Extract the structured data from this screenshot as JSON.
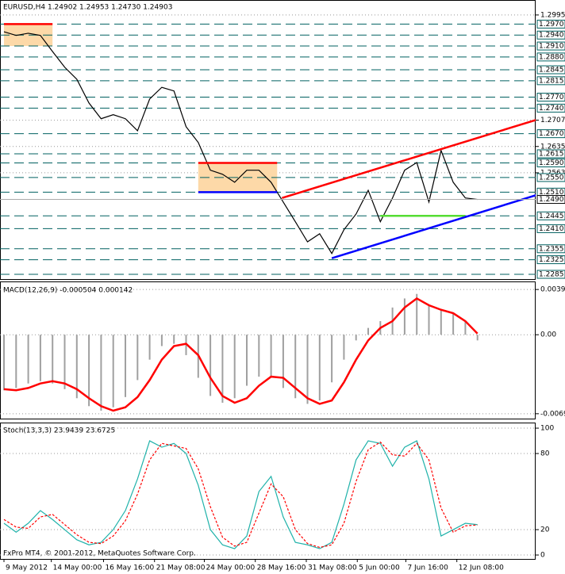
{
  "chart_data": [
    {
      "type": "line",
      "title": "EURUSD,H4  1.24902 1.24953 1.24730 1.24903",
      "xlim": [
        -0.327,
        43.79
      ],
      "ylim": [
        1.2272,
        1.3036
      ],
      "x": [
        0,
        1,
        2,
        3,
        4,
        5,
        6,
        7,
        8,
        9,
        10,
        11,
        12,
        13,
        14,
        15,
        16,
        17,
        18,
        19,
        20,
        21,
        22,
        23,
        24,
        25,
        26,
        27,
        28,
        29,
        30,
        31,
        32,
        33,
        34,
        35,
        36,
        37,
        38,
        39
      ],
      "series": [
        {
          "color": "#000000",
          "values": [
            1.2949,
            1.2939,
            1.2945,
            1.2939,
            1.2895,
            1.2852,
            1.2819,
            1.2754,
            1.2711,
            1.2722,
            1.2711,
            1.2678,
            1.2765,
            1.2797,
            1.2787,
            1.2689,
            1.2646,
            1.257,
            1.2559,
            1.2537,
            1.257,
            1.257,
            1.2537,
            1.2483,
            1.2429,
            1.2374,
            1.2396,
            1.2342,
            1.2407,
            1.245,
            1.2515,
            1.2429,
            1.2494,
            1.257,
            1.2591,
            1.2483,
            1.2624,
            1.2537,
            1.2494,
            1.249
          ]
        }
      ],
      "yticks": [
        {
          "value": 1.2995,
          "label": "1.2995"
        },
        {
          "value": 1.2707,
          "label": "1.2707"
        },
        {
          "value": 1.2635,
          "label": "1.2635"
        },
        {
          "value": 1.2563,
          "label": "1.2563"
        }
      ],
      "levels": [
        {
          "value": 1.297,
          "label": "1.2970"
        },
        {
          "value": 1.294,
          "label": "1.2940"
        },
        {
          "value": 1.291,
          "label": "1.2910"
        },
        {
          "value": 1.288,
          "label": "1.2880"
        },
        {
          "value": 1.2845,
          "label": "1.2845"
        },
        {
          "value": 1.2815,
          "label": "1.2815"
        },
        {
          "value": 1.277,
          "label": "1.2770"
        },
        {
          "value": 1.274,
          "label": "1.2740"
        },
        {
          "value": 1.267,
          "label": "1.2670"
        },
        {
          "value": 1.2615,
          "label": "1.2615"
        },
        {
          "value": 1.259,
          "label": "1.2590"
        },
        {
          "value": 1.255,
          "label": "1.2550"
        },
        {
          "value": 1.251,
          "label": "1.2510"
        },
        {
          "value": 1.2445,
          "label": "1.2445"
        },
        {
          "value": 1.241,
          "label": "1.2410"
        },
        {
          "value": 1.2355,
          "label": "1.2355"
        },
        {
          "value": 1.2325,
          "label": "1.2325"
        },
        {
          "value": 1.2285,
          "label": "1.2285"
        }
      ],
      "current": {
        "value": 1.249,
        "label": "1.2490"
      },
      "zones": [
        {
          "x": [
            0,
            4
          ],
          "y": [
            1.291,
            1.297
          ],
          "color": "#fdd9a8"
        },
        {
          "x": [
            16,
            22.5
          ],
          "y": [
            1.251,
            1.259
          ],
          "color": "#fdd9a8"
        }
      ],
      "segments": [
        {
          "x": [
            0,
            4
          ],
          "y": [
            1.297,
            1.297
          ],
          "color": "#ff0000"
        },
        {
          "x": [
            16,
            22.5
          ],
          "y": [
            1.259,
            1.259
          ],
          "color": "#ff0000"
        },
        {
          "x": [
            16,
            22.5
          ],
          "y": [
            1.251,
            1.251
          ],
          "color": "#0000ff"
        },
        {
          "x": [
            31,
            38
          ],
          "y": [
            1.2445,
            1.2445
          ],
          "color": "#55dd33"
        },
        {
          "x": [
            22.9,
            46.2
          ],
          "y": [
            1.2494,
            1.2732
          ],
          "color": "#ff0000"
        },
        {
          "x": [
            27,
            46.2
          ],
          "y": [
            1.2329,
            1.2526
          ],
          "color": "#0000ff"
        }
      ]
    },
    {
      "type": "bar",
      "title": "MACD(12,26,9) -0.000504 0.000142",
      "xlim": [
        -0.327,
        43.79
      ],
      "ylim": [
        -0.0074,
        0.0047
      ],
      "x": [
        0,
        1,
        2,
        3,
        4,
        5,
        6,
        7,
        8,
        9,
        10,
        11,
        12,
        13,
        14,
        15,
        16,
        17,
        18,
        19,
        20,
        21,
        22,
        23,
        24,
        25,
        26,
        27,
        28,
        29,
        30,
        31,
        32,
        33,
        34,
        35,
        36,
        37,
        38,
        39
      ],
      "values": [
        -0.0049,
        -0.0047,
        -0.0043,
        -0.0041,
        -0.0043,
        -0.0048,
        -0.0056,
        -0.0063,
        -0.0067,
        -0.0064,
        -0.0055,
        -0.004,
        -0.0022,
        -0.001,
        -0.0008,
        -0.0018,
        -0.0038,
        -0.0054,
        -0.006,
        -0.0056,
        -0.0045,
        -0.0037,
        -0.0038,
        -0.0047,
        -0.0056,
        -0.0061,
        -0.0058,
        -0.0042,
        -0.0022,
        -0.0005,
        0.0006,
        0.0012,
        0.0024,
        0.0032,
        0.0036,
        0.0026,
        0.0022,
        0.0019,
        0.0012,
        -0.0005
      ],
      "color": "#a0a0a0",
      "line": {
        "color": "#ff0000",
        "values": [
          -0.0048,
          -0.0049,
          -0.0047,
          -0.0043,
          -0.0041,
          -0.0043,
          -0.0048,
          -0.0056,
          -0.0063,
          -0.0067,
          -0.0064,
          -0.0055,
          -0.004,
          -0.0022,
          -0.001,
          -0.0008,
          -0.0018,
          -0.0038,
          -0.0054,
          -0.006,
          -0.0056,
          -0.0045,
          -0.0037,
          -0.0038,
          -0.0047,
          -0.0056,
          -0.0061,
          -0.0058,
          -0.0042,
          -0.0022,
          -0.0005,
          0.0006,
          0.0012,
          0.0024,
          0.0032,
          0.0026,
          0.0022,
          0.0019,
          0.0012,
          0.0001
        ]
      },
      "yticks": [
        0.00399,
        {
          "value": 0,
          "label": "0.00"
        },
        -0.00697
      ]
    },
    {
      "type": "line",
      "title": "Stoch(13,3,3) 23.9439 23.6725",
      "xlim": [
        -0.327,
        43.79
      ],
      "ylim": [
        -3.1,
        104.4
      ],
      "x": [
        0,
        1,
        2,
        3,
        4,
        5,
        6,
        7,
        8,
        9,
        10,
        11,
        12,
        13,
        14,
        15,
        16,
        17,
        18,
        19,
        20,
        21,
        22,
        23,
        24,
        25,
        26,
        27,
        28,
        29,
        30,
        31,
        32,
        33,
        34,
        35,
        36,
        37,
        38,
        39
      ],
      "series": [
        {
          "color": "#20b2aa",
          "values": [
            25,
            18,
            25,
            35,
            28,
            20,
            12,
            8,
            10,
            20,
            35,
            60,
            90,
            85,
            88,
            80,
            55,
            20,
            8,
            5,
            15,
            50,
            62,
            30,
            10,
            8,
            5,
            10,
            40,
            75,
            90,
            88,
            70,
            85,
            90,
            60,
            15,
            20,
            25,
            23.9439
          ]
        },
        {
          "color": "#ff0000",
          "dash": true,
          "values": [
            28,
            22,
            21,
            30,
            32,
            24,
            16,
            10,
            9,
            15,
            27,
            48,
            75,
            88,
            86,
            84,
            68,
            38,
            14,
            7,
            10,
            33,
            56,
            46,
            20,
            9,
            6,
            8,
            25,
            58,
            83,
            89,
            79,
            78,
            88,
            75,
            37,
            18,
            23,
            23.6725
          ]
        }
      ],
      "yticks": [
        100,
        80,
        20,
        0
      ],
      "xticks": [
        {
          "value": 0,
          "label": "9 May 2012"
        },
        {
          "value": 3.9,
          "label": "14 May 00:00"
        },
        {
          "value": 8.2,
          "label": "16 May 16:00"
        },
        {
          "value": 12.4,
          "label": "21 May 08:00"
        },
        {
          "value": 16.5,
          "label": "24 May 00:00"
        },
        {
          "value": 20.7,
          "label": "28 May 16:00"
        },
        {
          "value": 24.9,
          "label": "31 May 08:00"
        },
        {
          "value": 29.1,
          "label": "5 Jun 00:00"
        },
        {
          "value": 33.1,
          "label": "7 Jun 16:00"
        },
        {
          "value": 37.3,
          "label": "12 Jun 08:00"
        }
      ],
      "copyright": "FxPro MT4, © 2001-2012, MetaQuotes Software Corp."
    }
  ]
}
